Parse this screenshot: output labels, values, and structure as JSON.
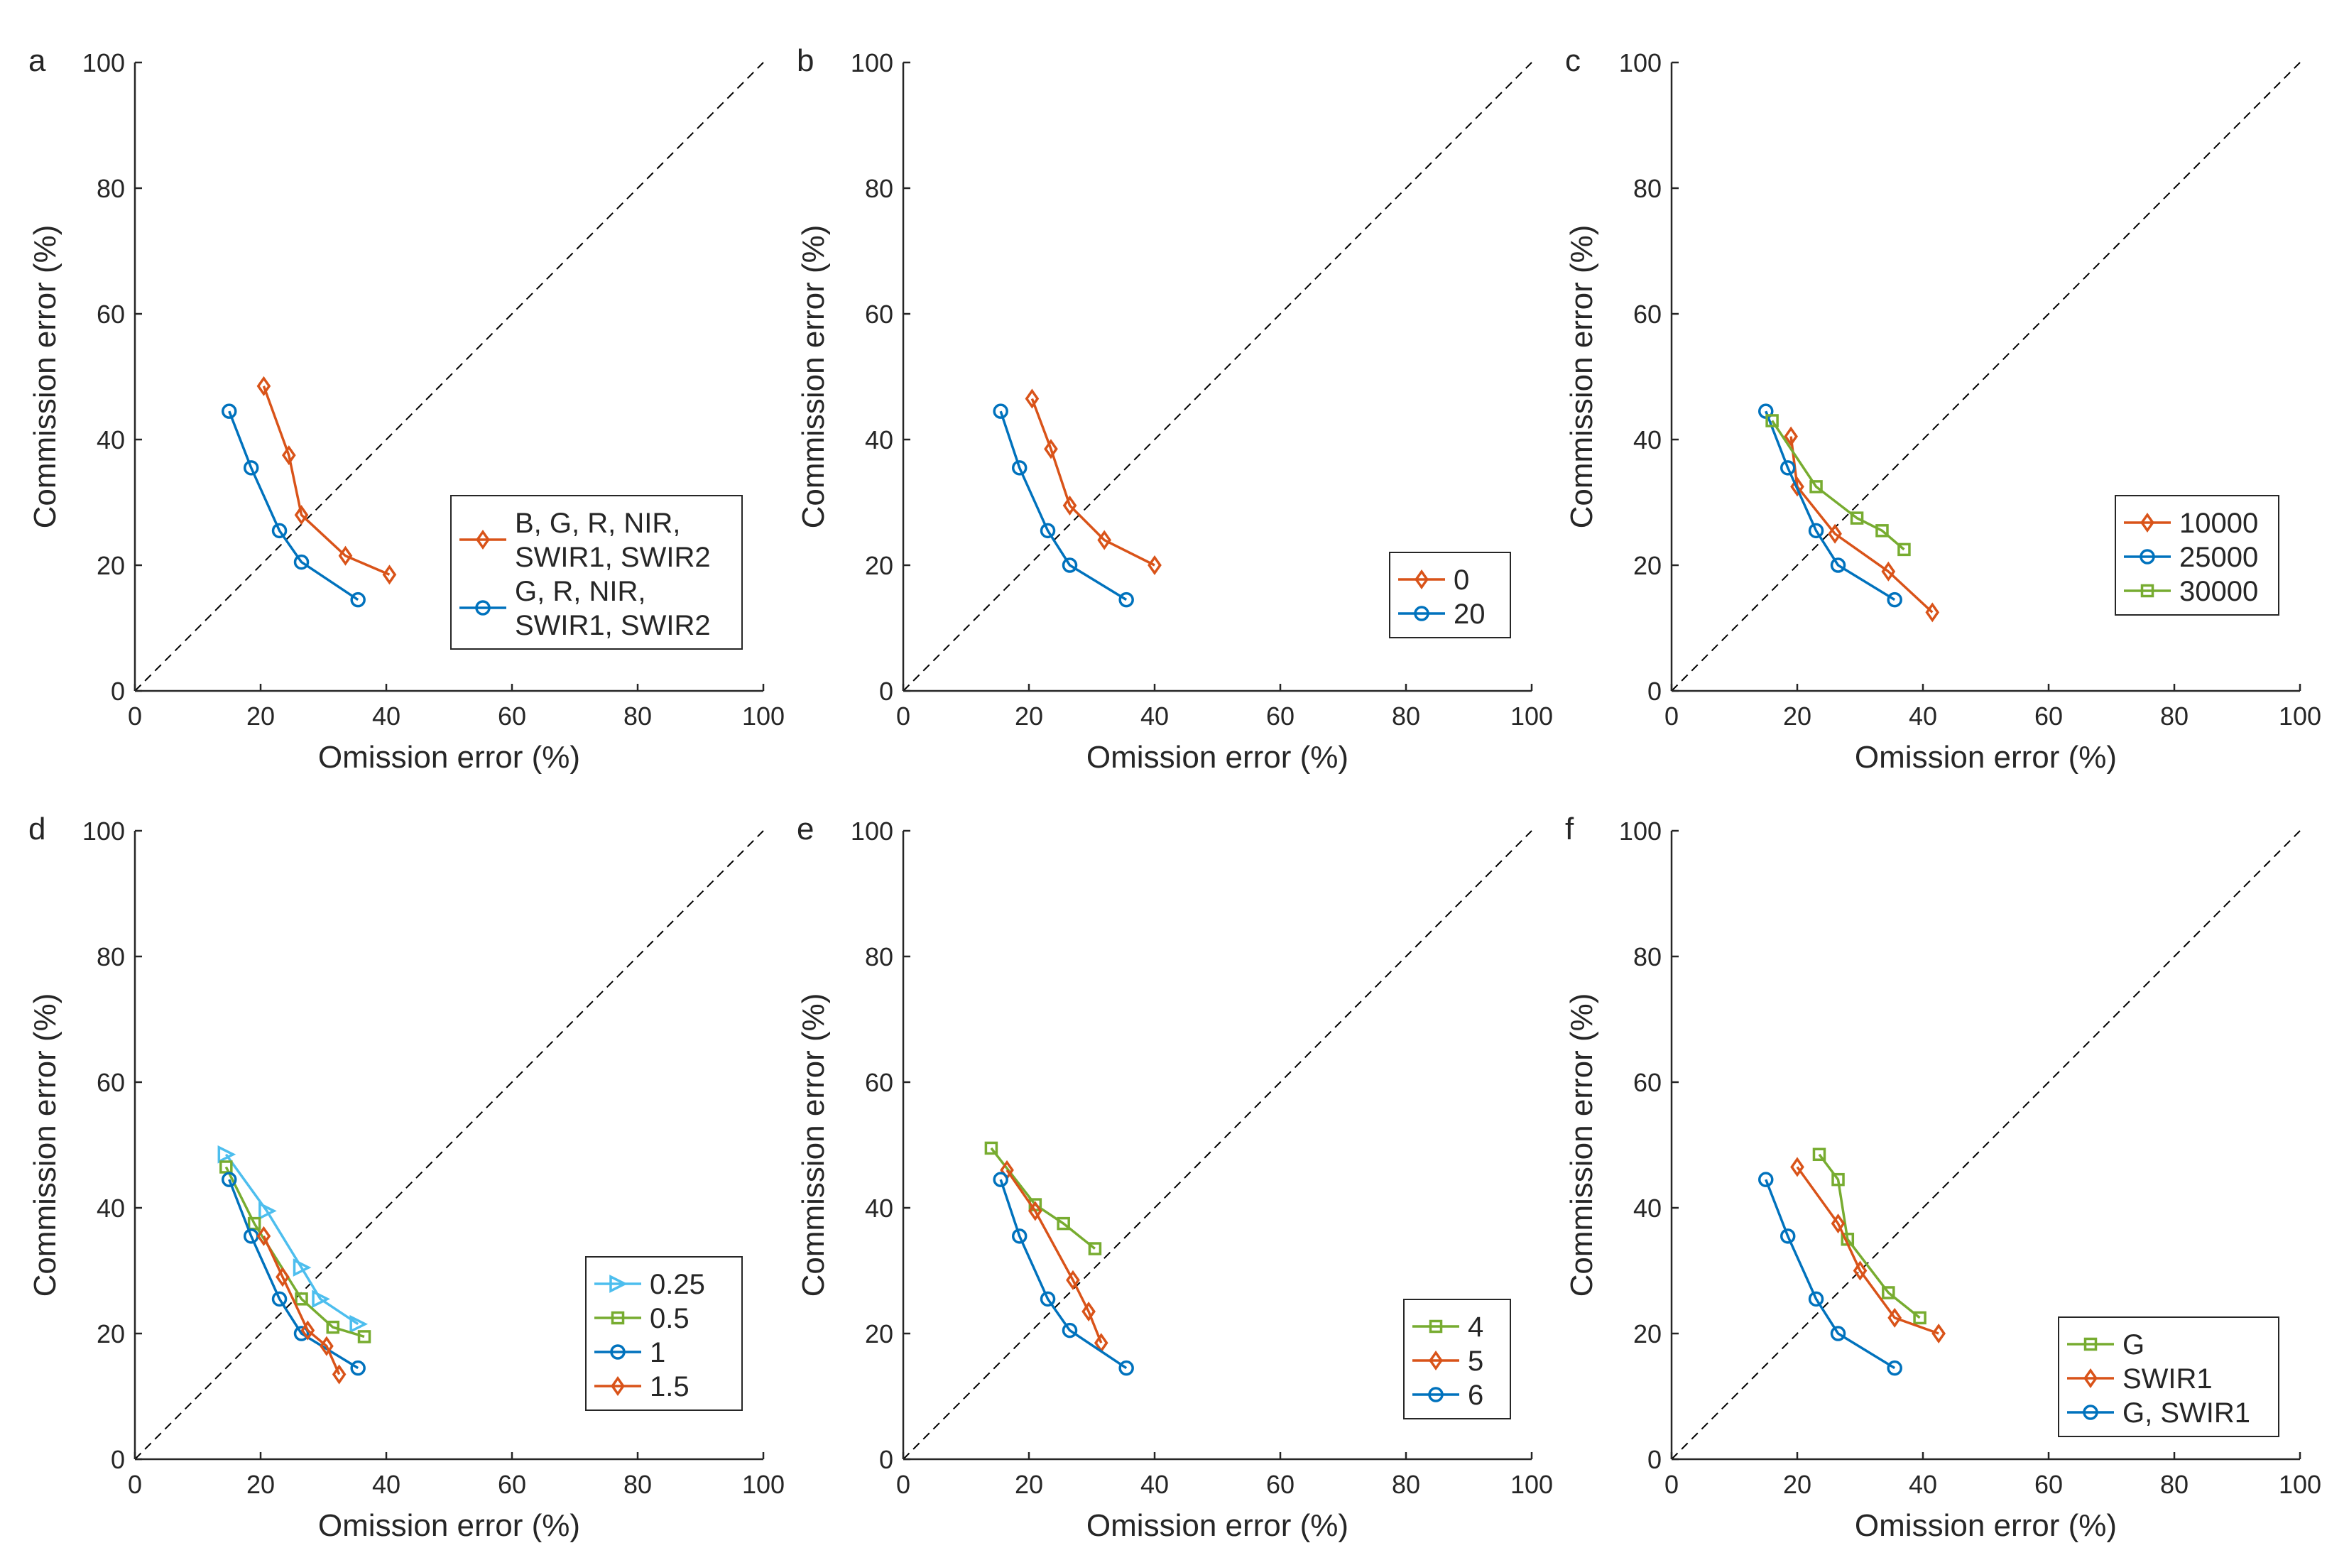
{
  "figure": {
    "description_labels": [
      "a",
      "b",
      "c",
      "d",
      "e",
      "f"
    ]
  },
  "colors": {
    "orange": "#D95319",
    "blue": "#0072BD",
    "green": "#77AC30",
    "light_blue": "#4DBEEE",
    "axis": "#262626",
    "diagonal": "#000000"
  },
  "chart_data": [
    {
      "panel": "a",
      "type": "line",
      "xlabel": "Omission error (%)",
      "ylabel": "Commission error (%)",
      "xlim": [
        0,
        100
      ],
      "ylim": [
        0,
        100
      ],
      "xticks": [
        0,
        20,
        40,
        60,
        80,
        100
      ],
      "yticks": [
        0,
        20,
        40,
        60,
        80,
        100
      ],
      "diagonal": {
        "from": [
          0,
          0
        ],
        "to": [
          100,
          100
        ],
        "style": "dashed"
      },
      "legend_position": "right-middle",
      "series": [
        {
          "name": "B, G, R, NIR, SWIR1, SWIR2",
          "legend_lines": [
            "B, G, R, NIR,",
            "SWIR1, SWIR2"
          ],
          "color": "orange",
          "marker": "diamond",
          "x": [
            20.5,
            24.5,
            26.5,
            33.5,
            40.5
          ],
          "y": [
            48.5,
            37.5,
            28.0,
            21.5,
            18.5
          ]
        },
        {
          "name": "G, R, NIR, SWIR1, SWIR2",
          "legend_lines": [
            "G, R, NIR,",
            "SWIR1, SWIR2"
          ],
          "color": "blue",
          "marker": "circle",
          "x": [
            15.0,
            18.5,
            23.0,
            26.5,
            35.5
          ],
          "y": [
            44.5,
            35.5,
            25.5,
            20.5,
            14.5
          ]
        }
      ]
    },
    {
      "panel": "b",
      "type": "line",
      "xlabel": "Omission error (%)",
      "ylabel": "Commission error (%)",
      "xlim": [
        0,
        100
      ],
      "ylim": [
        0,
        100
      ],
      "xticks": [
        0,
        20,
        40,
        60,
        80,
        100
      ],
      "yticks": [
        0,
        20,
        40,
        60,
        80,
        100
      ],
      "diagonal": {
        "from": [
          0,
          0
        ],
        "to": [
          100,
          100
        ],
        "style": "dashed"
      },
      "legend_position": "bottom-right",
      "series": [
        {
          "name": "0",
          "legend_lines": [
            "0"
          ],
          "color": "orange",
          "marker": "diamond",
          "x": [
            20.5,
            23.5,
            26.5,
            32.0,
            40.0
          ],
          "y": [
            46.5,
            38.5,
            29.5,
            24.0,
            20.0
          ]
        },
        {
          "name": "20",
          "legend_lines": [
            "20"
          ],
          "color": "blue",
          "marker": "circle",
          "x": [
            15.5,
            18.5,
            23.0,
            26.5,
            35.5
          ],
          "y": [
            44.5,
            35.5,
            25.5,
            20.0,
            14.5
          ]
        }
      ]
    },
    {
      "panel": "c",
      "type": "line",
      "xlabel": "Omission error (%)",
      "ylabel": "Commission error (%)",
      "xlim": [
        0,
        100
      ],
      "ylim": [
        0,
        100
      ],
      "xticks": [
        0,
        20,
        40,
        60,
        80,
        100
      ],
      "yticks": [
        0,
        20,
        40,
        60,
        80,
        100
      ],
      "diagonal": {
        "from": [
          0,
          0
        ],
        "to": [
          100,
          100
        ],
        "style": "dashed"
      },
      "legend_position": "right-middle",
      "series": [
        {
          "name": "10000",
          "legend_lines": [
            "10000"
          ],
          "color": "orange",
          "marker": "diamond",
          "x": [
            19.0,
            20.0,
            26.0,
            34.5,
            41.5
          ],
          "y": [
            40.5,
            32.5,
            25.0,
            19.0,
            12.5
          ]
        },
        {
          "name": "25000",
          "legend_lines": [
            "25000"
          ],
          "color": "blue",
          "marker": "circle",
          "x": [
            15.0,
            18.5,
            23.0,
            26.5,
            35.5
          ],
          "y": [
            44.5,
            35.5,
            25.5,
            20.0,
            14.5
          ]
        },
        {
          "name": "30000",
          "legend_lines": [
            "30000"
          ],
          "color": "green",
          "marker": "square",
          "x": [
            16.0,
            23.0,
            29.5,
            33.5,
            37.0
          ],
          "y": [
            43.0,
            32.5,
            27.5,
            25.5,
            22.5
          ]
        }
      ]
    },
    {
      "panel": "d",
      "type": "line",
      "xlabel": "Omission error (%)",
      "ylabel": "Commission error (%)",
      "xlim": [
        0,
        100
      ],
      "ylim": [
        0,
        100
      ],
      "xticks": [
        0,
        20,
        40,
        60,
        80,
        100
      ],
      "yticks": [
        0,
        20,
        40,
        60,
        80,
        100
      ],
      "diagonal": {
        "from": [
          0,
          0
        ],
        "to": [
          100,
          100
        ],
        "style": "dashed"
      },
      "legend_position": "bottom-right",
      "series": [
        {
          "name": "0.25",
          "legend_lines": [
            "0.25"
          ],
          "color": "light_blue",
          "marker": "triangle-right",
          "x": [
            14.5,
            21.0,
            26.5,
            29.5,
            35.5
          ],
          "y": [
            48.5,
            39.5,
            30.5,
            25.5,
            21.5
          ]
        },
        {
          "name": "0.5",
          "legend_lines": [
            "0.5"
          ],
          "color": "green",
          "marker": "square",
          "x": [
            14.5,
            19.0,
            26.5,
            31.5,
            36.5
          ],
          "y": [
            46.5,
            37.5,
            25.5,
            21.0,
            19.5
          ]
        },
        {
          "name": "1",
          "legend_lines": [
            "1"
          ],
          "color": "blue",
          "marker": "circle",
          "x": [
            15.0,
            18.5,
            23.0,
            26.5,
            35.5
          ],
          "y": [
            44.5,
            35.5,
            25.5,
            20.0,
            14.5
          ]
        },
        {
          "name": "1.5",
          "legend_lines": [
            "1.5"
          ],
          "color": "orange",
          "marker": "diamond",
          "x": [
            20.5,
            23.5,
            27.5,
            30.5,
            32.5
          ],
          "y": [
            35.5,
            29.0,
            20.5,
            18.0,
            13.5
          ]
        }
      ]
    },
    {
      "panel": "e",
      "type": "line",
      "xlabel": "Omission error (%)",
      "ylabel": "Commission error (%)",
      "xlim": [
        0,
        100
      ],
      "ylim": [
        0,
        100
      ],
      "xticks": [
        0,
        20,
        40,
        60,
        80,
        100
      ],
      "yticks": [
        0,
        20,
        40,
        60,
        80,
        100
      ],
      "diagonal": {
        "from": [
          0,
          0
        ],
        "to": [
          100,
          100
        ],
        "style": "dashed"
      },
      "legend_position": "bottom-right",
      "series": [
        {
          "name": "4",
          "legend_lines": [
            "4"
          ],
          "color": "green",
          "marker": "square",
          "x": [
            14.0,
            21.0,
            25.5,
            30.5
          ],
          "y": [
            49.5,
            40.5,
            37.5,
            33.5
          ]
        },
        {
          "name": "5",
          "legend_lines": [
            "5"
          ],
          "color": "orange",
          "marker": "diamond",
          "x": [
            16.5,
            21.0,
            27.0,
            29.5,
            31.5
          ],
          "y": [
            46.0,
            39.5,
            28.5,
            23.5,
            18.5
          ]
        },
        {
          "name": "6",
          "legend_lines": [
            "6"
          ],
          "color": "blue",
          "marker": "circle",
          "x": [
            15.5,
            18.5,
            23.0,
            26.5,
            35.5
          ],
          "y": [
            44.5,
            35.5,
            25.5,
            20.5,
            14.5
          ]
        }
      ]
    },
    {
      "panel": "f",
      "type": "line",
      "xlabel": "Omission error (%)",
      "ylabel": "Commission error (%)",
      "xlim": [
        0,
        100
      ],
      "ylim": [
        0,
        100
      ],
      "xticks": [
        0,
        20,
        40,
        60,
        80,
        100
      ],
      "yticks": [
        0,
        20,
        40,
        60,
        80,
        100
      ],
      "diagonal": {
        "from": [
          0,
          0
        ],
        "to": [
          100,
          100
        ],
        "style": "dashed"
      },
      "legend_position": "bottom-right",
      "series": [
        {
          "name": "G",
          "legend_lines": [
            "G"
          ],
          "color": "green",
          "marker": "square",
          "x": [
            23.5,
            26.5,
            28.0,
            34.5,
            39.5
          ],
          "y": [
            48.5,
            44.5,
            35.0,
            26.5,
            22.5
          ]
        },
        {
          "name": "SWIR1",
          "legend_lines": [
            "SWIR1"
          ],
          "color": "orange",
          "marker": "diamond",
          "x": [
            20.0,
            26.5,
            30.0,
            35.5,
            42.5
          ],
          "y": [
            46.5,
            37.5,
            30.0,
            22.5,
            20.0
          ]
        },
        {
          "name": "G, SWIR1",
          "legend_lines": [
            "G, SWIR1"
          ],
          "color": "blue",
          "marker": "circle",
          "x": [
            15.0,
            18.5,
            23.0,
            26.5,
            35.5
          ],
          "y": [
            44.5,
            35.5,
            25.5,
            20.0,
            14.5
          ]
        }
      ]
    }
  ]
}
